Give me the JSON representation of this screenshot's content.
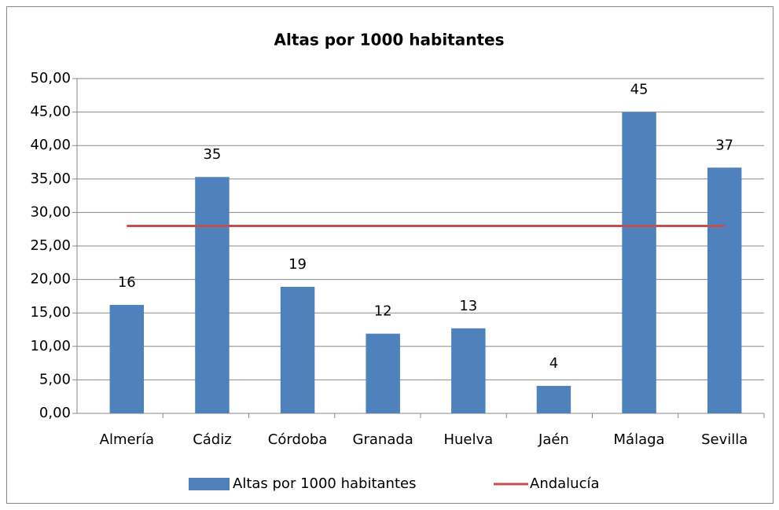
{
  "chart_data": {
    "type": "bar",
    "title": "Altas por 1000 habitantes",
    "categories": [
      "Almería",
      "Cádiz",
      "Córdoba",
      "Granada",
      "Huelva",
      "Jaén",
      "Málaga",
      "Sevilla"
    ],
    "series": [
      {
        "name": "Altas por 1000 habitantes",
        "type": "bar",
        "color": "#4f81bd",
        "values": [
          16.2,
          35.3,
          18.9,
          11.9,
          12.7,
          4.1,
          45.0,
          36.7
        ],
        "value_labels": [
          "16",
          "35",
          "19",
          "12",
          "13",
          "4",
          "45",
          "37"
        ]
      },
      {
        "name": "Andalucía",
        "type": "line",
        "color": "#c0504d",
        "values": [
          28,
          28,
          28,
          28,
          28,
          28,
          28,
          28
        ]
      }
    ],
    "ylim": [
      0,
      50
    ],
    "yticks": [
      {
        "value": 0,
        "label": "0,00"
      },
      {
        "value": 5,
        "label": "5,00"
      },
      {
        "value": 10,
        "label": "10,00"
      },
      {
        "value": 15,
        "label": "15,00"
      },
      {
        "value": 20,
        "label": "20,00"
      },
      {
        "value": 25,
        "label": "25,00"
      },
      {
        "value": 30,
        "label": "30,00"
      },
      {
        "value": 35,
        "label": "35,00"
      },
      {
        "value": 40,
        "label": "40,00"
      },
      {
        "value": 45,
        "label": "45,00"
      },
      {
        "value": 50,
        "label": "50,00"
      }
    ],
    "grid": true,
    "legend": "bottom"
  }
}
